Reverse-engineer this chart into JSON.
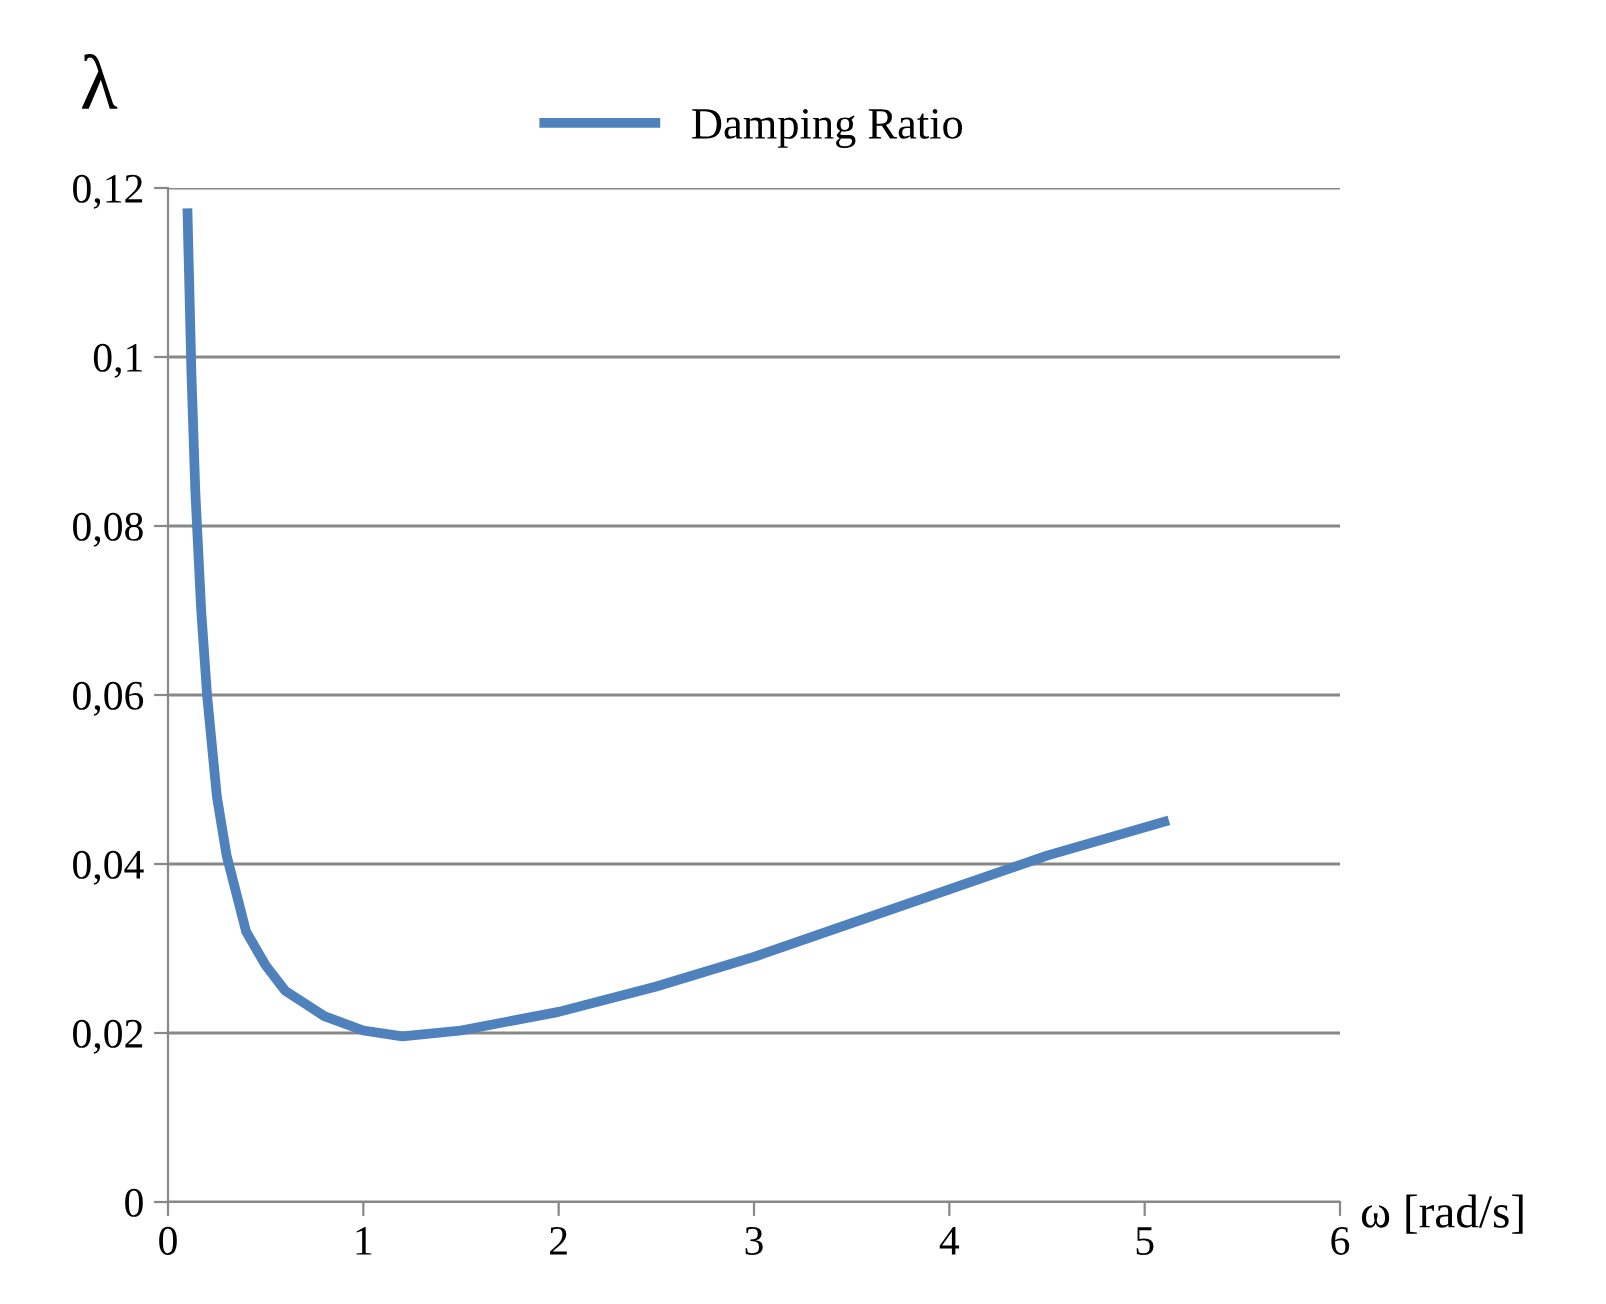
{
  "chart_data": {
    "type": "line",
    "ylabel": "λ",
    "xlabel": "ω [rad/s]",
    "series": [
      {
        "name": "Damping Ratio",
        "color": "#4f81bd",
        "x": [
          0.1,
          0.12,
          0.14,
          0.17,
          0.2,
          0.25,
          0.3,
          0.4,
          0.5,
          0.6,
          0.8,
          1.0,
          1.2,
          1.5,
          2,
          2.5,
          3,
          3.5,
          4,
          4.5,
          5.1
        ],
        "values": [
          0.117,
          0.098,
          0.084,
          0.07,
          0.06,
          0.048,
          0.041,
          0.032,
          0.028,
          0.025,
          0.022,
          0.0203,
          0.0196,
          0.0203,
          0.0225,
          0.0255,
          0.029,
          0.033,
          0.037,
          0.041,
          0.045
        ]
      }
    ],
    "xlim": [
      0,
      6
    ],
    "xticks": [
      0,
      1,
      2,
      3,
      4,
      5,
      6
    ],
    "ylim": [
      0,
      0.12
    ],
    "yticks": [
      0,
      {
        "value": 0.02,
        "label": "0,02"
      },
      {
        "value": 0.04,
        "label": "0,04"
      },
      {
        "value": 0.06,
        "label": "0,06"
      },
      {
        "value": 0.08,
        "label": "0,08"
      },
      {
        "value": 0.1,
        "label": "0,1"
      },
      {
        "value": 0.12,
        "label": "0,12"
      }
    ],
    "grid": "y",
    "legend": "top",
    "marker": "none",
    "line_style": "solid"
  }
}
